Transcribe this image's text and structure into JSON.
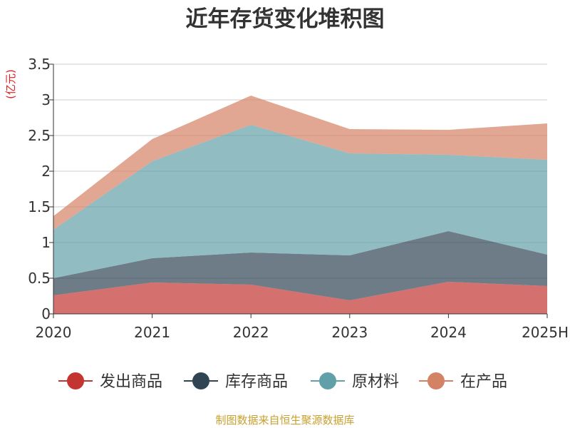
{
  "chart_data": {
    "type": "area",
    "stacked": true,
    "title": "近年存货变化堆积图",
    "unit_label": "(亿元)",
    "categories": [
      "2020",
      "2021",
      "2022",
      "2023",
      "2024",
      "2025H"
    ],
    "ylim": [
      0,
      3.5
    ],
    "yticks": [
      "0",
      "0.5",
      "1",
      "1.5",
      "2",
      "2.5",
      "3",
      "3.5"
    ],
    "grid": true,
    "legend_position": "bottom",
    "series": [
      {
        "name": "发出商品",
        "values": [
          0.26,
          0.44,
          0.41,
          0.19,
          0.45,
          0.39
        ],
        "color": "#c23531"
      },
      {
        "name": "库存商品",
        "values": [
          0.24,
          0.34,
          0.45,
          0.63,
          0.71,
          0.44
        ],
        "color": "#2f4554"
      },
      {
        "name": "原材料",
        "values": [
          0.68,
          1.36,
          1.79,
          1.43,
          1.07,
          1.33
        ],
        "color": "#61a0a8"
      },
      {
        "name": "在产品",
        "values": [
          0.19,
          0.31,
          0.41,
          0.34,
          0.35,
          0.51
        ],
        "color": "#d48265"
      }
    ],
    "source": "制图数据来自恒生聚源数据库"
  }
}
